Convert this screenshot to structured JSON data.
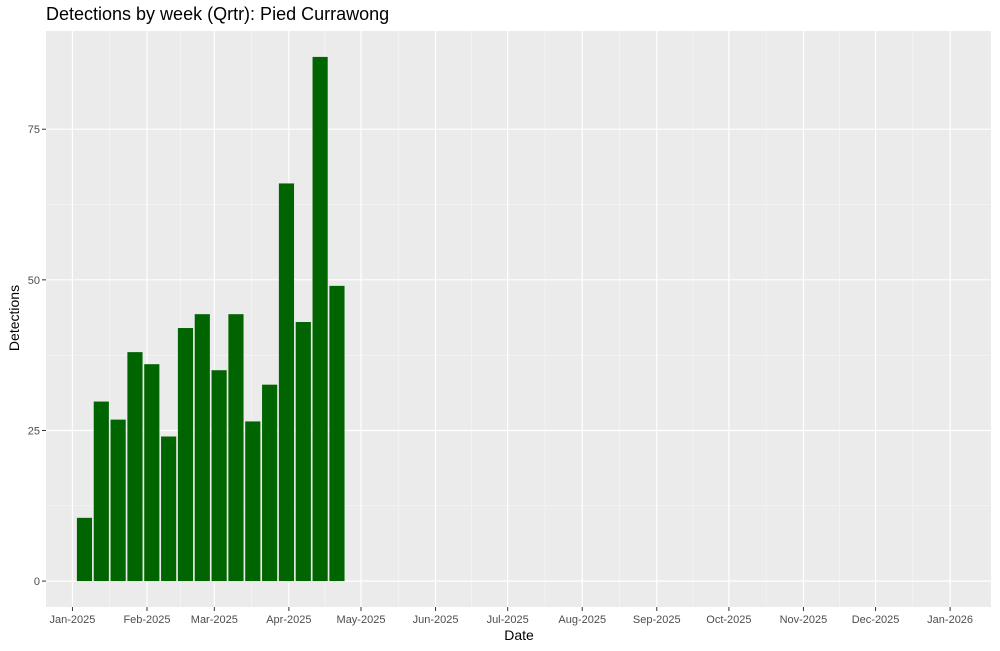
{
  "chart_data": {
    "type": "bar",
    "title": "Detections by week (Qrtr): Pied Currawong",
    "xlabel": "Date",
    "ylabel": "Detections",
    "x_ticks": [
      "Jan-2025",
      "Feb-2025",
      "Mar-2025",
      "Apr-2025",
      "May-2025",
      "Jun-2025",
      "Jul-2025",
      "Aug-2025",
      "Sep-2025",
      "Oct-2025",
      "Nov-2025",
      "Dec-2025",
      "Jan-2026"
    ],
    "y_ticks": [
      0,
      25,
      50,
      75
    ],
    "xlim": [
      "2024-12-21",
      "2026-01-18"
    ],
    "ylim": [
      -4.3,
      91.3
    ],
    "categories": [
      "2025-01-06",
      "2025-01-13",
      "2025-01-20",
      "2025-01-27",
      "2025-02-03",
      "2025-02-10",
      "2025-02-17",
      "2025-02-24",
      "2025-03-03",
      "2025-03-10",
      "2025-03-17",
      "2025-03-24",
      "2025-03-31",
      "2025-04-07",
      "2025-04-14",
      "2025-04-21"
    ],
    "values": [
      10.5,
      29.8,
      26.8,
      38,
      36,
      24,
      42,
      44.3,
      35,
      44.3,
      26.5,
      32.6,
      66,
      43,
      87,
      49
    ],
    "bar_color": "#006400",
    "panel_background": "#ebebeb",
    "grid": true,
    "legend": "none"
  }
}
